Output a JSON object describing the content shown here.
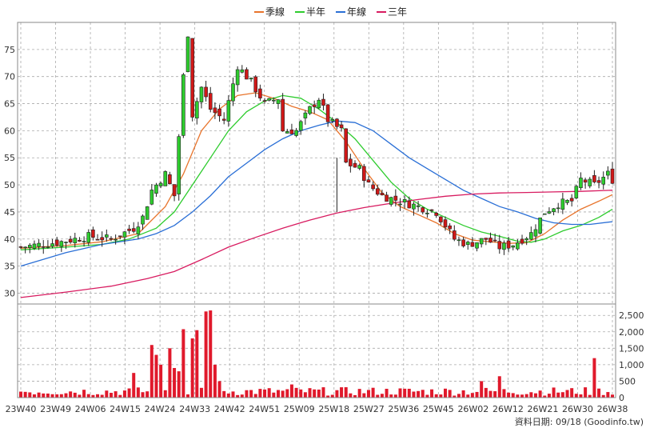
{
  "chart_data": {
    "type": "candlestick",
    "legend": [
      {
        "name": "季線",
        "color": "#e8742c"
      },
      {
        "name": "半年",
        "color": "#2ecc2e"
      },
      {
        "name": "年線",
        "color": "#2a6fd6"
      },
      {
        "name": "三年",
        "color": "#d81b60"
      }
    ],
    "price_ticks": [
      "30",
      "35",
      "40",
      "45",
      "50",
      "55",
      "60",
      "65",
      "70",
      "75"
    ],
    "price_range": [
      28,
      80
    ],
    "volume_ticks": [
      "0",
      "500",
      "1,000",
      "1,500",
      "2,000",
      "2,500"
    ],
    "volume_range": [
      0,
      2700
    ],
    "x_ticks": [
      "23W40",
      "23W49",
      "24W06",
      "24W15",
      "24W24",
      "24W33",
      "24W42",
      "24W51",
      "25W09",
      "25W18",
      "25W27",
      "25W36",
      "25W45",
      "26W02",
      "26W12",
      "26W21",
      "26W30",
      "26W38"
    ],
    "grid": true,
    "colors": {
      "up": "#2ecc2e",
      "down": "#d01818",
      "volume": "#e0192b",
      "grid": "#aaaaaa"
    },
    "key_points": [
      {
        "w": 0,
        "c": 38.5
      },
      {
        "w": 9,
        "c": 39.5
      },
      {
        "w": 15,
        "c": 40.5
      },
      {
        "w": 20,
        "c": 40
      },
      {
        "w": 25,
        "c": 42
      },
      {
        "w": 27,
        "c": 44
      },
      {
        "w": 29,
        "c": 49
      },
      {
        "w": 32,
        "c": 52
      },
      {
        "w": 34,
        "c": 48
      },
      {
        "w": 36,
        "c": 70
      },
      {
        "w": 37,
        "c": 78
      },
      {
        "w": 38,
        "c": 63
      },
      {
        "w": 40,
        "c": 68
      },
      {
        "w": 42,
        "c": 64
      },
      {
        "w": 45,
        "c": 62
      },
      {
        "w": 48,
        "c": 72
      },
      {
        "w": 51,
        "c": 69
      },
      {
        "w": 54,
        "c": 65
      },
      {
        "w": 57,
        "c": 66
      },
      {
        "w": 58,
        "c": 60
      },
      {
        "w": 61,
        "c": 60
      },
      {
        "w": 64,
        "c": 64
      },
      {
        "w": 66,
        "c": 66
      },
      {
        "w": 68,
        "c": 62
      },
      {
        "w": 71,
        "c": 60
      },
      {
        "w": 72,
        "c": 54
      },
      {
        "w": 75,
        "c": 53
      },
      {
        "w": 77,
        "c": 50
      },
      {
        "w": 80,
        "c": 48
      },
      {
        "w": 84,
        "c": 47
      },
      {
        "w": 88,
        "c": 46
      },
      {
        "w": 92,
        "c": 45
      },
      {
        "w": 96,
        "c": 40
      },
      {
        "w": 99,
        "c": 39
      },
      {
        "w": 103,
        "c": 40
      },
      {
        "w": 106,
        "c": 38.5
      },
      {
        "w": 109,
        "c": 39
      },
      {
        "w": 113,
        "c": 41
      },
      {
        "w": 116,
        "c": 45
      },
      {
        "w": 119,
        "c": 46.5
      },
      {
        "w": 122,
        "c": 47
      },
      {
        "w": 124,
        "c": 51
      },
      {
        "w": 127,
        "c": 50
      },
      {
        "w": 130,
        "c": 52
      },
      {
        "w": 131,
        "c": 51
      }
    ],
    "ma_lines": {
      "季線": [
        [
          0,
          38.3
        ],
        [
          10,
          38.8
        ],
        [
          18,
          39.5
        ],
        [
          26,
          41
        ],
        [
          32,
          46
        ],
        [
          36,
          52
        ],
        [
          40,
          60
        ],
        [
          44,
          64
        ],
        [
          48,
          66.5
        ],
        [
          52,
          67
        ],
        [
          56,
          66
        ],
        [
          60,
          64.5
        ],
        [
          64,
          63.5
        ],
        [
          68,
          62
        ],
        [
          72,
          58
        ],
        [
          76,
          53
        ],
        [
          80,
          48.5
        ],
        [
          84,
          46
        ],
        [
          88,
          44.5
        ],
        [
          92,
          43
        ],
        [
          96,
          41
        ],
        [
          100,
          39.8
        ],
        [
          104,
          39.5
        ],
        [
          108,
          39.2
        ],
        [
          112,
          39.3
        ],
        [
          116,
          41
        ],
        [
          120,
          43.5
        ],
        [
          124,
          45.5
        ],
        [
          128,
          47
        ],
        [
          131,
          48.2
        ]
      ],
      "半年": [
        [
          0,
          38
        ],
        [
          10,
          38.5
        ],
        [
          18,
          39
        ],
        [
          24,
          40
        ],
        [
          30,
          42
        ],
        [
          34,
          45
        ],
        [
          38,
          50
        ],
        [
          42,
          55
        ],
        [
          46,
          60
        ],
        [
          50,
          63.5
        ],
        [
          54,
          65.5
        ],
        [
          58,
          66.5
        ],
        [
          62,
          66
        ],
        [
          66,
          64
        ],
        [
          70,
          61.5
        ],
        [
          74,
          58.5
        ],
        [
          78,
          54.5
        ],
        [
          82,
          50.5
        ],
        [
          86,
          47.5
        ],
        [
          90,
          45.5
        ],
        [
          94,
          44
        ],
        [
          98,
          42.5
        ],
        [
          102,
          41.3
        ],
        [
          106,
          40.5
        ],
        [
          110,
          39.6
        ],
        [
          113,
          39.4
        ],
        [
          116,
          40
        ],
        [
          120,
          41.5
        ],
        [
          124,
          42.5
        ],
        [
          128,
          44
        ],
        [
          131,
          45.5
        ]
      ],
      "年線": [
        [
          0,
          35
        ],
        [
          10,
          37.5
        ],
        [
          18,
          39
        ],
        [
          26,
          40
        ],
        [
          30,
          41
        ],
        [
          34,
          42.5
        ],
        [
          38,
          45
        ],
        [
          42,
          48
        ],
        [
          46,
          51.5
        ],
        [
          50,
          54
        ],
        [
          54,
          56.5
        ],
        [
          58,
          58.5
        ],
        [
          62,
          60
        ],
        [
          66,
          61
        ],
        [
          70,
          61.8
        ],
        [
          74,
          61.5
        ],
        [
          78,
          60
        ],
        [
          82,
          57.5
        ],
        [
          86,
          55
        ],
        [
          90,
          53
        ],
        [
          94,
          51
        ],
        [
          98,
          49
        ],
        [
          102,
          47.5
        ],
        [
          106,
          46
        ],
        [
          110,
          45
        ],
        [
          114,
          43.8
        ],
        [
          118,
          43
        ],
        [
          122,
          42.7
        ],
        [
          126,
          42.7
        ],
        [
          131,
          43.2
        ]
      ],
      "三年": [
        [
          0,
          29.2
        ],
        [
          10,
          30.2
        ],
        [
          20,
          31.3
        ],
        [
          28,
          32.7
        ],
        [
          34,
          34
        ],
        [
          40,
          36.2
        ],
        [
          46,
          38.5
        ],
        [
          52,
          40.3
        ],
        [
          58,
          42
        ],
        [
          64,
          43.5
        ],
        [
          70,
          44.8
        ],
        [
          76,
          45.8
        ],
        [
          82,
          46.6
        ],
        [
          88,
          47.3
        ],
        [
          94,
          47.9
        ],
        [
          100,
          48.3
        ],
        [
          106,
          48.5
        ],
        [
          112,
          48.6
        ],
        [
          118,
          48.7
        ],
        [
          124,
          48.8
        ],
        [
          131,
          49
        ]
      ]
    },
    "volume_spikes": [
      {
        "w": 25,
        "v": 750
      },
      {
        "w": 29,
        "v": 1600
      },
      {
        "w": 30,
        "v": 1300
      },
      {
        "w": 31,
        "v": 1000
      },
      {
        "w": 33,
        "v": 1500
      },
      {
        "w": 34,
        "v": 900
      },
      {
        "w": 35,
        "v": 800
      },
      {
        "w": 36,
        "v": 2080
      },
      {
        "w": 38,
        "v": 1800
      },
      {
        "w": 39,
        "v": 2050
      },
      {
        "w": 41,
        "v": 2620
      },
      {
        "w": 42,
        "v": 2650
      },
      {
        "w": 43,
        "v": 1000
      },
      {
        "w": 44,
        "v": 500
      },
      {
        "w": 60,
        "v": 400
      },
      {
        "w": 102,
        "v": 500
      },
      {
        "w": 106,
        "v": 650
      },
      {
        "w": 127,
        "v": 1200
      }
    ],
    "source": "資料日期: 09/18  (Goodinfo.tw)"
  }
}
